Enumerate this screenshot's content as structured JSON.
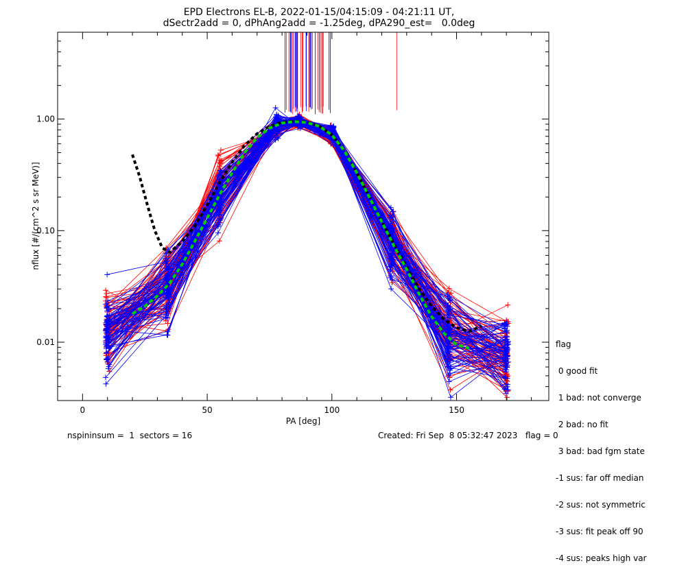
{
  "title_line1": "EPD Electrons EL-B, 2022-01-15/04:15:09 - 04:21:11 UT,",
  "title_line2": "dSectr2add = 0, dPhAng2add = -1.25deg, dPA290_est=   0.0deg",
  "legend": {
    "heading": "flag",
    "items": [
      " 0 good fit",
      " 1 bad: not converge",
      " 2 bad: no fit",
      " 3 bad: bad fgm state",
      "-1 sus: far off median",
      "-2 sus: not symmetric",
      "-3 sus: fit peak off 90",
      "-4 sus: peaks high var"
    ]
  },
  "footer_left": "nspininsum =  1  sectors = 16",
  "footer_right": "Created: Fri Sep  8 05:32:47 2023   flag = 0",
  "colors": {
    "red": "#ff0000",
    "blue": "#0000ff",
    "green": "#00cc00",
    "black": "#000000"
  },
  "chart_data": {
    "type": "line",
    "xlabel": "PA [deg]",
    "ylabel": "nflux [#/(cm^2 s sr MeV)]",
    "xlim": [
      -10,
      187
    ],
    "ylim": [
      0.003,
      6
    ],
    "yscale": "log",
    "xticks": [
      0,
      50,
      100,
      150
    ],
    "xtick_labels": [
      "0",
      "50",
      "100",
      "150"
    ],
    "yticks": [
      0.01,
      0.1,
      1.0
    ],
    "ytick_labels": [
      "0.01",
      "0.10",
      "1.00"
    ],
    "pa_bins": [
      10,
      34,
      55,
      78,
      87,
      100,
      124,
      147,
      170
    ],
    "median_curve": {
      "x": [
        20,
        25,
        30,
        35,
        40,
        45,
        50,
        55,
        60,
        65,
        70,
        75,
        80,
        85,
        90,
        95,
        100,
        105,
        110,
        115,
        120,
        125,
        130,
        135,
        140,
        145,
        150,
        155
      ],
      "y": [
        0.018,
        0.021,
        0.026,
        0.034,
        0.05,
        0.08,
        0.13,
        0.21,
        0.33,
        0.5,
        0.68,
        0.83,
        0.92,
        0.95,
        0.93,
        0.86,
        0.72,
        0.52,
        0.33,
        0.2,
        0.12,
        0.072,
        0.045,
        0.027,
        0.017,
        0.012,
        0.0095,
        0.0088
      ]
    },
    "fit_curve": {
      "x": [
        20,
        23,
        26,
        29,
        32,
        35,
        40,
        45,
        50,
        55,
        60,
        65,
        70,
        75,
        80,
        85,
        90,
        95,
        100,
        105,
        110,
        115,
        120,
        125,
        130,
        135,
        140,
        145,
        150,
        155,
        160
      ],
      "y": [
        0.48,
        0.3,
        0.17,
        0.1,
        0.07,
        0.064,
        0.08,
        0.11,
        0.17,
        0.27,
        0.41,
        0.58,
        0.74,
        0.86,
        0.94,
        0.96,
        0.94,
        0.86,
        0.72,
        0.52,
        0.33,
        0.2,
        0.12,
        0.075,
        0.047,
        0.03,
        0.021,
        0.016,
        0.0135,
        0.0125,
        0.014
      ]
    }
  }
}
